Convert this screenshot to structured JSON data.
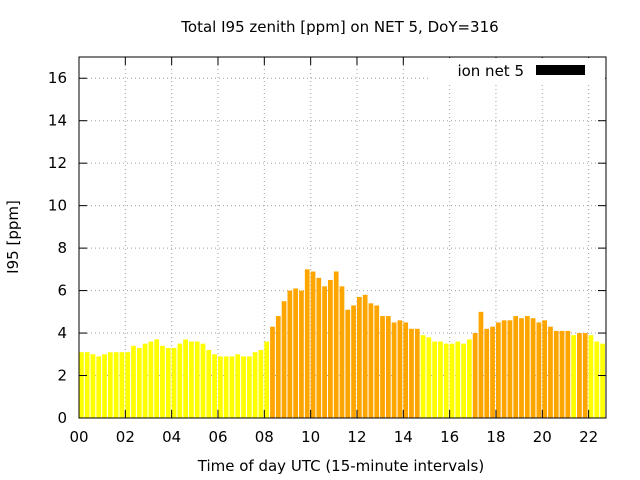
{
  "chart_data": {
    "type": "bar",
    "title": "Total I95 zenith [ppm] on NET 5, DoY=316",
    "xlabel": "Time of day UTC (15-minute intervals)",
    "ylabel": "I95 [ppm]",
    "xlim": [
      0,
      22.75
    ],
    "ylim": [
      0,
      17
    ],
    "x_ticks": [
      "00",
      "02",
      "04",
      "06",
      "08",
      "10",
      "12",
      "14",
      "16",
      "18",
      "20",
      "22"
    ],
    "y_ticks": [
      "0",
      "2",
      "4",
      "6",
      "8",
      "10",
      "12",
      "14",
      "16"
    ],
    "grid": true,
    "legend": {
      "position": "top-right",
      "entries": [
        {
          "label": "ion net 5",
          "color": "#000000"
        }
      ]
    },
    "colors": {
      "low": "#ffff00",
      "elevated": "#ffa500"
    },
    "bar_interval_hours": 0.25,
    "series": [
      {
        "name": "ion net 5",
        "values": [
          3.1,
          3.1,
          3.0,
          2.9,
          3.0,
          3.1,
          3.1,
          3.1,
          3.1,
          3.4,
          3.3,
          3.5,
          3.6,
          3.7,
          3.4,
          3.3,
          3.3,
          3.5,
          3.7,
          3.6,
          3.6,
          3.5,
          3.2,
          3.0,
          2.9,
          2.9,
          2.9,
          3.0,
          2.9,
          2.9,
          3.1,
          3.2,
          3.6,
          4.3,
          4.8,
          5.5,
          6.0,
          6.1,
          6.0,
          7.0,
          6.9,
          6.6,
          6.2,
          6.5,
          6.9,
          6.2,
          5.1,
          5.3,
          5.7,
          5.8,
          5.4,
          5.3,
          4.8,
          4.8,
          4.5,
          4.6,
          4.5,
          4.2,
          4.2,
          3.9,
          3.8,
          3.6,
          3.6,
          3.5,
          3.5,
          3.6,
          3.5,
          3.7,
          4.0,
          5.0,
          4.2,
          4.3,
          4.5,
          4.6,
          4.6,
          4.8,
          4.7,
          4.8,
          4.7,
          4.5,
          4.6,
          4.3,
          4.1,
          4.1,
          4.1,
          3.9,
          4.0,
          4.0,
          3.9,
          3.6,
          3.5
        ],
        "levels": [
          "low",
          "low",
          "low",
          "low",
          "low",
          "low",
          "low",
          "low",
          "low",
          "low",
          "low",
          "low",
          "low",
          "low",
          "low",
          "low",
          "low",
          "low",
          "low",
          "low",
          "low",
          "low",
          "low",
          "low",
          "low",
          "low",
          "low",
          "low",
          "low",
          "low",
          "low",
          "low",
          "low",
          "elevated",
          "elevated",
          "elevated",
          "elevated",
          "elevated",
          "elevated",
          "elevated",
          "elevated",
          "elevated",
          "elevated",
          "elevated",
          "elevated",
          "elevated",
          "elevated",
          "elevated",
          "elevated",
          "elevated",
          "elevated",
          "elevated",
          "elevated",
          "elevated",
          "elevated",
          "elevated",
          "elevated",
          "elevated",
          "elevated",
          "low",
          "low",
          "low",
          "low",
          "low",
          "low",
          "low",
          "low",
          "low",
          "elevated",
          "elevated",
          "elevated",
          "elevated",
          "elevated",
          "elevated",
          "elevated",
          "elevated",
          "elevated",
          "elevated",
          "elevated",
          "elevated",
          "elevated",
          "elevated",
          "elevated",
          "elevated",
          "elevated",
          "low",
          "elevated",
          "elevated",
          "low",
          "low",
          "low"
        ]
      }
    ]
  }
}
